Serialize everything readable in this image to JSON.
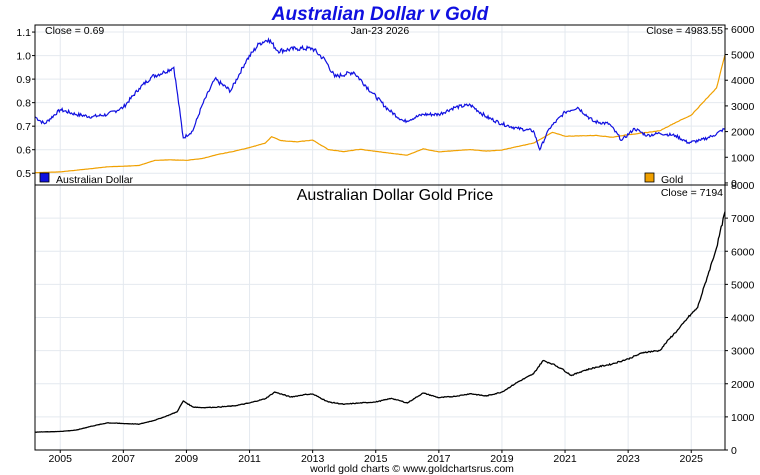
{
  "chart_data": [
    {
      "type": "line",
      "title": "Australian Dollar v Gold",
      "annotations": {
        "left_close": "Close = 0.69",
        "date": "Jan-23  2026",
        "right_close": "Close = 4983.55"
      },
      "legend": [
        {
          "name": "Australian Dollar",
          "color": "#1010e0",
          "placement": "bottom-left"
        },
        {
          "name": "Gold",
          "color": "#f0a000",
          "placement": "bottom-right"
        }
      ],
      "x_range": [
        2004.2,
        2026.07
      ],
      "left_axis": {
        "ticks": [
          "0.5",
          "0.6",
          "0.7",
          "0.8",
          "0.9",
          "1.0",
          "1.1"
        ],
        "range": [
          0.45,
          1.13
        ]
      },
      "right_axis": {
        "ticks": [
          "0",
          "1000",
          "2000",
          "3000",
          "4000",
          "5000",
          "6000"
        ],
        "range": [
          -80,
          6150
        ]
      },
      "grid": true,
      "series": [
        {
          "name": "Australian Dollar",
          "axis": "left",
          "color": "#1010e0",
          "x": [
            2004.2,
            2004.5,
            2005.0,
            2005.5,
            2006.0,
            2006.5,
            2007.0,
            2007.5,
            2007.9,
            2008.3,
            2008.6,
            2008.9,
            2009.2,
            2009.5,
            2009.9,
            2010.4,
            2010.9,
            2011.3,
            2011.6,
            2011.9,
            2012.5,
            2013.0,
            2013.4,
            2013.7,
            2014.3,
            2014.9,
            2015.4,
            2015.9,
            2016.5,
            2017.0,
            2017.5,
            2018.0,
            2018.5,
            2019.0,
            2019.5,
            2020.0,
            2020.2,
            2020.5,
            2021.0,
            2021.4,
            2021.9,
            2022.4,
            2022.8,
            2023.2,
            2023.6,
            2024.0,
            2024.5,
            2024.9,
            2025.3,
            2025.7,
            2026.07
          ],
          "y": [
            0.74,
            0.71,
            0.77,
            0.75,
            0.74,
            0.75,
            0.78,
            0.86,
            0.91,
            0.93,
            0.95,
            0.65,
            0.68,
            0.79,
            0.9,
            0.85,
            0.98,
            1.05,
            1.07,
            1.02,
            1.03,
            1.03,
            0.98,
            0.91,
            0.93,
            0.84,
            0.77,
            0.72,
            0.75,
            0.75,
            0.78,
            0.79,
            0.74,
            0.71,
            0.69,
            0.68,
            0.6,
            0.69,
            0.76,
            0.78,
            0.72,
            0.71,
            0.64,
            0.69,
            0.66,
            0.67,
            0.66,
            0.63,
            0.64,
            0.66,
            0.69
          ]
        },
        {
          "name": "Gold",
          "axis": "right",
          "color": "#f0a000",
          "x": [
            2004.2,
            2005.0,
            2006.0,
            2006.5,
            2007.0,
            2007.5,
            2008.0,
            2008.5,
            2009.0,
            2009.5,
            2010.0,
            2010.5,
            2011.0,
            2011.5,
            2011.7,
            2012.0,
            2012.5,
            2013.0,
            2013.5,
            2014.0,
            2014.5,
            2015.0,
            2015.5,
            2016.0,
            2016.5,
            2017.0,
            2018.0,
            2018.5,
            2019.0,
            2019.5,
            2020.0,
            2020.6,
            2021.0,
            2022.0,
            2022.5,
            2023.0,
            2023.5,
            2024.0,
            2024.5,
            2025.0,
            2025.5,
            2025.8,
            2026.07
          ],
          "y": [
            400,
            430,
            560,
            630,
            650,
            680,
            880,
            900,
            880,
            950,
            1110,
            1230,
            1380,
            1550,
            1800,
            1650,
            1600,
            1670,
            1300,
            1220,
            1310,
            1230,
            1150,
            1080,
            1330,
            1210,
            1300,
            1240,
            1280,
            1420,
            1550,
            1970,
            1820,
            1850,
            1780,
            1880,
            1950,
            2030,
            2350,
            2640,
            3300,
            3700,
            4983.55
          ]
        }
      ]
    },
    {
      "type": "line",
      "title": "Australian Dollar Gold Price",
      "annotations": {
        "right_close": "Close = 7194"
      },
      "x_range": [
        2004.2,
        2026.07
      ],
      "x_ticks": [
        "2005",
        "2007",
        "2009",
        "2011",
        "2013",
        "2015",
        "2017",
        "2019",
        "2021",
        "2023",
        "2025"
      ],
      "right_axis": {
        "ticks": [
          "0",
          "1000",
          "2000",
          "3000",
          "4000",
          "5000",
          "6000",
          "7000",
          "8000"
        ],
        "range": [
          0,
          8000
        ]
      },
      "grid": true,
      "series": [
        {
          "name": "Australian Dollar Gold Price",
          "color": "#000000",
          "x": [
            2004.2,
            2005.0,
            2005.5,
            2006.0,
            2006.5,
            2007.0,
            2007.5,
            2008.0,
            2008.3,
            2008.7,
            2008.9,
            2009.2,
            2009.5,
            2009.9,
            2010.5,
            2011.0,
            2011.5,
            2011.8,
            2012.3,
            2012.8,
            2013.0,
            2013.5,
            2014.0,
            2014.5,
            2015.0,
            2015.5,
            2016.0,
            2016.5,
            2017.0,
            2017.5,
            2018.0,
            2018.5,
            2019.0,
            2019.5,
            2020.0,
            2020.3,
            2020.6,
            2020.9,
            2021.2,
            2021.6,
            2022.0,
            2022.5,
            2023.0,
            2023.5,
            2024.0,
            2024.3,
            2024.6,
            2024.9,
            2025.2,
            2025.5,
            2025.8,
            2026.07
          ],
          "y": [
            540,
            560,
            600,
            720,
            820,
            800,
            780,
            900,
            1000,
            1150,
            1480,
            1300,
            1280,
            1290,
            1330,
            1420,
            1550,
            1750,
            1600,
            1680,
            1690,
            1450,
            1380,
            1420,
            1450,
            1560,
            1420,
            1720,
            1580,
            1620,
            1700,
            1630,
            1750,
            2050,
            2300,
            2700,
            2600,
            2450,
            2250,
            2400,
            2500,
            2600,
            2750,
            2950,
            3000,
            3350,
            3650,
            4000,
            4300,
            5200,
            6100,
            7194
          ]
        }
      ]
    }
  ],
  "footer": "world gold charts © www.goldchartsrus.com"
}
